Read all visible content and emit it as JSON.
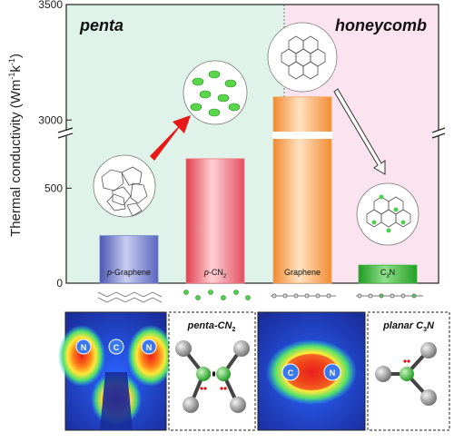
{
  "chart_data": {
    "type": "bar",
    "ylabel_main": "Thermal conductivity (Wm",
    "ylabel_sup1": "-1",
    "ylabel_k": "k",
    "ylabel_sup2": "-1",
    "ylabel_close": ")",
    "y_axis": {
      "lower_range": [
        0,
        750
      ],
      "upper_range": [
        2950,
        3500
      ],
      "break": true,
      "ticks": [
        "0",
        "500",
        "3000",
        "3500"
      ]
    },
    "regions": [
      {
        "label": "penta",
        "color": "#dff3ea"
      },
      {
        "label": "honeycomb",
        "color": "#fbe3ef"
      }
    ],
    "categories": [
      "p-Graphene",
      "p-CN2",
      "Graphene",
      "C3N"
    ],
    "bar_labels": [
      {
        "italic": "p",
        "rest": "-Graphene",
        "sub": ""
      },
      {
        "italic": "p",
        "rest": "-CN",
        "sub": "2"
      },
      {
        "italic": "",
        "rest": "Graphene",
        "sub": ""
      },
      {
        "italic": "",
        "rest": "C",
        "sub": "3",
        "rest2": "N"
      }
    ],
    "values": [
      250,
      655,
      3100,
      95
    ],
    "bar_colors": [
      "#6f7ecb",
      "#f07880",
      "#f5a45c",
      "#3ab43a"
    ],
    "annotations": {
      "panel_labels": [
        {
          "italic_bold": "penta",
          "suffix": "-CN",
          "sub": "2"
        },
        {
          "italic_bold": "planar C",
          "sub": "3",
          "suffix": "N"
        }
      ],
      "atom_labels": [
        "C",
        "N",
        "N",
        "C",
        "N"
      ]
    }
  }
}
